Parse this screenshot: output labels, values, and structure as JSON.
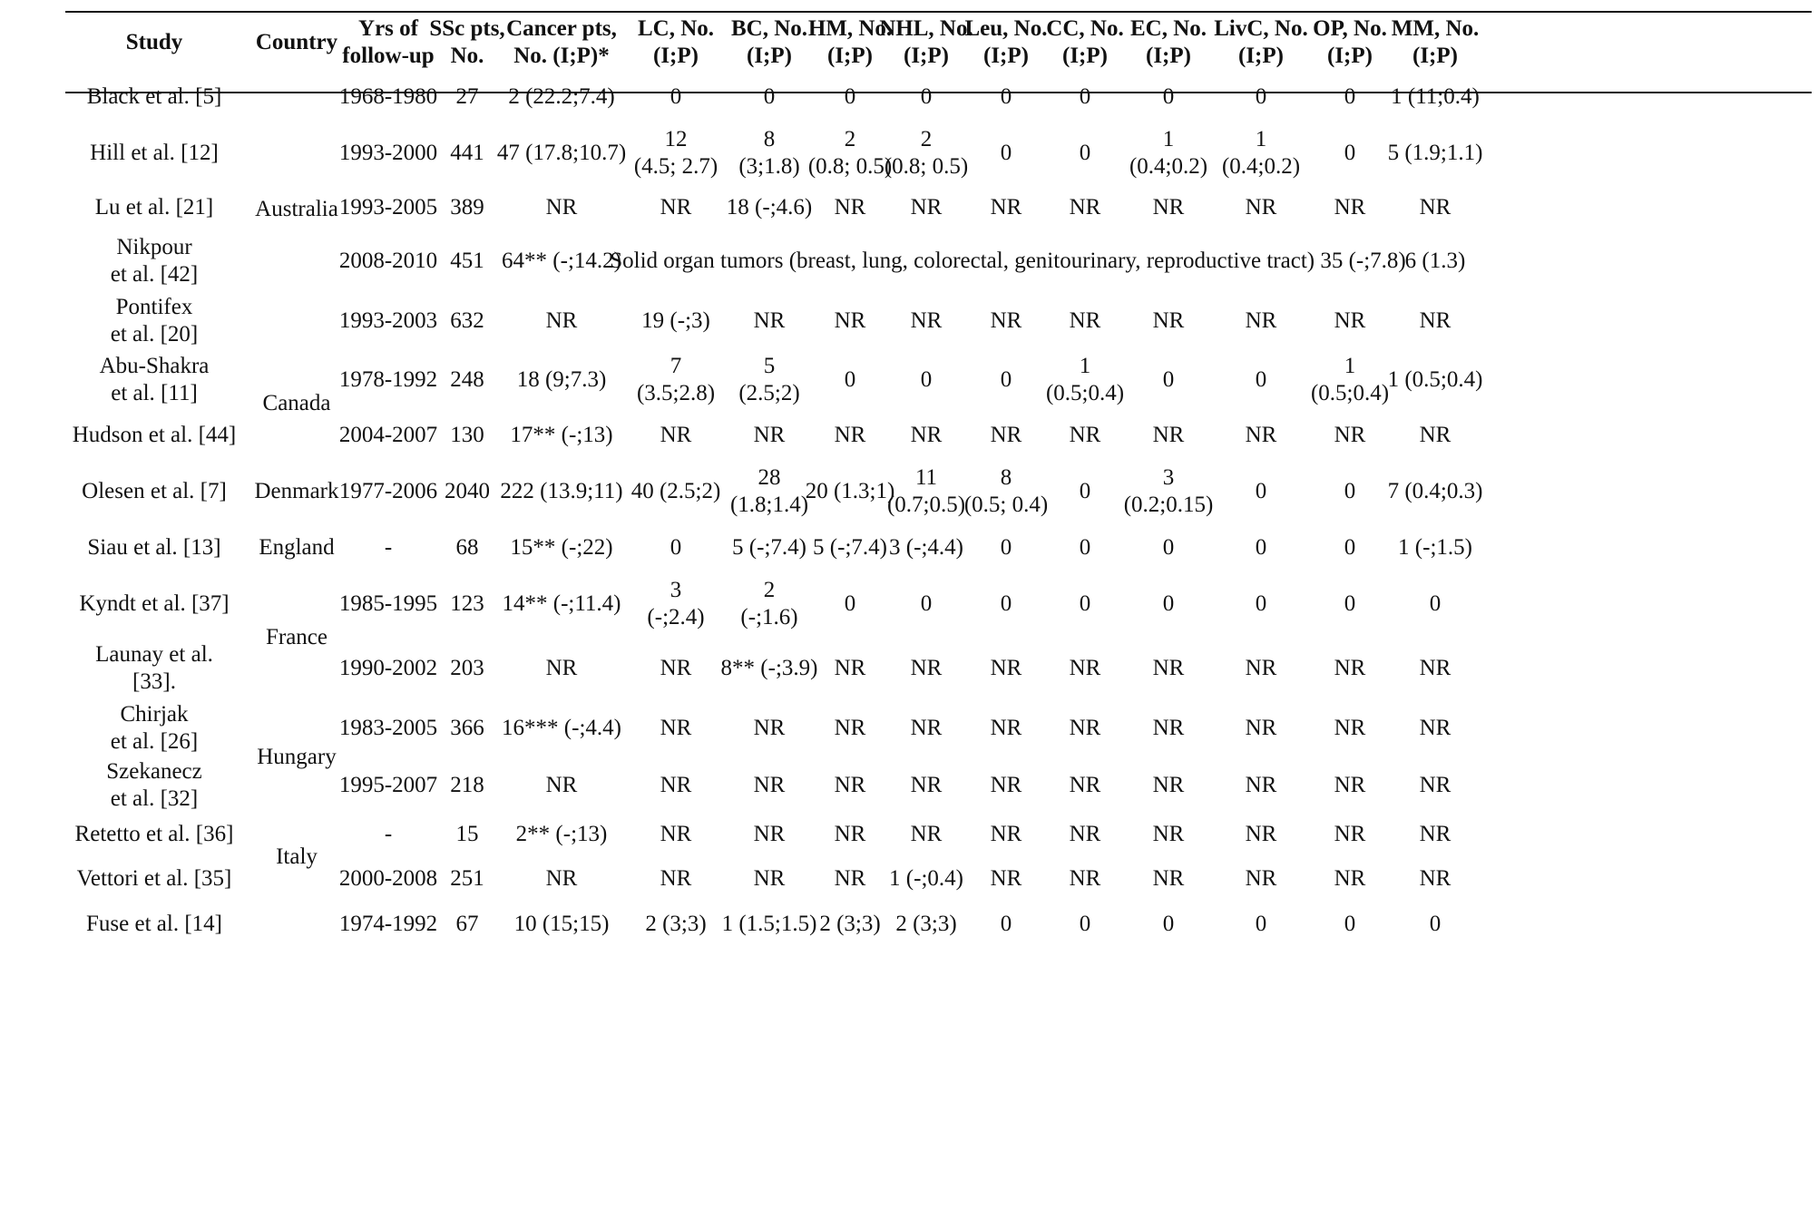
{
  "columns": [
    "Study",
    "Country",
    "Yrs of follow-up",
    "SSc pts, No.",
    "Cancer pts, No. (I;P)*",
    "LC, No. (I;P)",
    "BC, No. (I;P)",
    "HM, No. (I;P)",
    "NHL, No. (I;P)",
    "Leu, No. (I;P)",
    "CC, No. (I;P)",
    "EC, No. (I;P)",
    "LivC, No. (I;P)",
    "OP, No. (I;P)",
    "MM, No. (I;P)"
  ],
  "header_lines": [
    [
      "Study"
    ],
    [
      "Country"
    ],
    [
      "Yrs of",
      "follow-up"
    ],
    [
      "SSc pts,",
      "No."
    ],
    [
      "Cancer pts,",
      "No. (I;P)*"
    ],
    [
      "LC, No.",
      "(I;P)"
    ],
    [
      "BC, No.",
      "(I;P)"
    ],
    [
      "HM, No.",
      "(I;P)"
    ],
    [
      "NHL, No.",
      "(I;P)"
    ],
    [
      "Leu, No.",
      "(I;P)"
    ],
    [
      "CC, No.",
      "(I;P)"
    ],
    [
      "EC, No.",
      "(I;P)"
    ],
    [
      "LivC, No.",
      "(I;P)"
    ],
    [
      "OP, No.",
      "(I;P)"
    ],
    [
      "MM, No.",
      "(I;P)"
    ]
  ],
  "countries": [
    {
      "name": "Australia"
    },
    {
      "name": "Canada"
    },
    {
      "name": "Denmark"
    },
    {
      "name": "England"
    },
    {
      "name": "France"
    },
    {
      "name": "Hungary"
    },
    {
      "name": "Italy"
    }
  ],
  "span_note": "Solid organ tumors (breast, lung, colorectal, genitourinary, reproductive tract) 35 (-;7.8)",
  "rows": [
    {
      "study": [
        "Black et al. [5]"
      ],
      "cells": [
        "1968-1980",
        "27",
        "2 (22.2;7.4)",
        "0",
        "0",
        "0",
        "0",
        "0",
        "0",
        "0",
        "0",
        "0",
        "1 (11;0.4)"
      ]
    },
    {
      "study": [
        "Hill et al. [12]"
      ],
      "cells": [
        "1993-2000",
        "441",
        "47 (17.8;10.7)",
        "12\n(4.5; 2.7)",
        "8\n(3;1.8)",
        "2\n(0.8; 0.5)",
        "2\n(0.8; 0.5)",
        "0",
        "0",
        "1\n(0.4;0.2)",
        "1\n(0.4;0.2)",
        "0",
        "5 (1.9;1.1)"
      ]
    },
    {
      "study": [
        "Lu et al. [21]"
      ],
      "cells": [
        "1993-2005",
        "389",
        "NR",
        "NR",
        "18 (-;4.6)",
        "NR",
        "NR",
        "NR",
        "NR",
        "NR",
        "NR",
        "NR",
        "NR"
      ]
    },
    {
      "study": [
        "Nikpour",
        "et al. [42]"
      ],
      "cells": [
        "2008-2010",
        "451",
        "64** (-;14.2)",
        "",
        "",
        "",
        "",
        "",
        "",
        "",
        "",
        "",
        "6 (1.3)"
      ]
    },
    {
      "study": [
        "Pontifex",
        "et al. [20]"
      ],
      "cells": [
        "1993-2003",
        "632",
        "NR",
        "19 (-;3)",
        "NR",
        "NR",
        "NR",
        "NR",
        "NR",
        "NR",
        "NR",
        "NR",
        "NR"
      ]
    },
    {
      "study": [
        "Abu-Shakra",
        "et al. [11]"
      ],
      "cells": [
        "1978-1992",
        "248",
        "18 (9;7.3)",
        "7\n(3.5;2.8)",
        "5\n(2.5;2)",
        "0",
        "0",
        "0",
        "1\n(0.5;0.4)",
        "0",
        "0",
        "1\n(0.5;0.4)",
        "1 (0.5;0.4)"
      ]
    },
    {
      "study": [
        "Hudson et al. [44]"
      ],
      "cells": [
        "2004-2007",
        "130",
        "17** (-;13)",
        "NR",
        "NR",
        "NR",
        "NR",
        "NR",
        "NR",
        "NR",
        "NR",
        "NR",
        "NR"
      ]
    },
    {
      "study": [
        "Olesen et al. [7]"
      ],
      "cells": [
        "1977-2006",
        "2040",
        "222 (13.9;11)",
        "40 (2.5;2)",
        "28\n(1.8;1.4)",
        "20 (1.3;1)",
        "11\n(0.7;0.5)",
        "8\n(0.5; 0.4)",
        "0",
        "3\n(0.2;0.15)",
        "0",
        "0",
        "7 (0.4;0.3)"
      ]
    },
    {
      "study": [
        "Siau et al. [13]"
      ],
      "cells": [
        "-",
        "68",
        "15** (-;22)",
        "0",
        "5 (-;7.4)",
        "5 (-;7.4)",
        "3 (-;4.4)",
        "0",
        "0",
        "0",
        "0",
        "0",
        "1 (-;1.5)"
      ]
    },
    {
      "study": [
        "Kyndt et al. [37]"
      ],
      "cells": [
        "1985-1995",
        "123",
        "14** (-;11.4)",
        "3\n(-;2.4)",
        "2\n(-;1.6)",
        "0",
        "0",
        "0",
        "0",
        "0",
        "0",
        "0",
        "0"
      ]
    },
    {
      "study": [
        "Launay et al.",
        "[33]."
      ],
      "cells": [
        "1990-2002",
        "203",
        "NR",
        "NR",
        "8** (-;3.9)",
        "NR",
        "NR",
        "NR",
        "NR",
        "NR",
        "NR",
        "NR",
        "NR"
      ]
    },
    {
      "study": [
        "Chirjak",
        "et al. [26]"
      ],
      "cells": [
        "1983-2005",
        "366",
        "16*** (-;4.4)",
        "NR",
        "NR",
        "NR",
        "NR",
        "NR",
        "NR",
        "NR",
        "NR",
        "NR",
        "NR"
      ]
    },
    {
      "study": [
        "Szekanecz",
        "et al. [32]"
      ],
      "cells": [
        "1995-2007",
        "218",
        "NR",
        "NR",
        "NR",
        "NR",
        "NR",
        "NR",
        "NR",
        "NR",
        "NR",
        "NR",
        "NR"
      ]
    },
    {
      "study": [
        "Retetto et al. [36]"
      ],
      "cells": [
        "-",
        "15",
        "2** (-;13)",
        "NR",
        "NR",
        "NR",
        "NR",
        "NR",
        "NR",
        "NR",
        "NR",
        "NR",
        "NR"
      ]
    },
    {
      "study": [
        "Vettori et al. [35]"
      ],
      "cells": [
        "2000-2008",
        "251",
        "NR",
        "NR",
        "NR",
        "NR",
        "1 (-;0.4)",
        "NR",
        "NR",
        "NR",
        "NR",
        "NR",
        "NR"
      ]
    },
    {
      "study": [
        "Fuse et al. [14]"
      ],
      "cells": [
        "1974-1992",
        "67",
        "10 (15;15)",
        "2 (3;3)",
        "1 (1.5;1.5)",
        "2 (3;3)",
        "2 (3;3)",
        "0",
        "0",
        "0",
        "0",
        "0",
        "0"
      ]
    }
  ]
}
